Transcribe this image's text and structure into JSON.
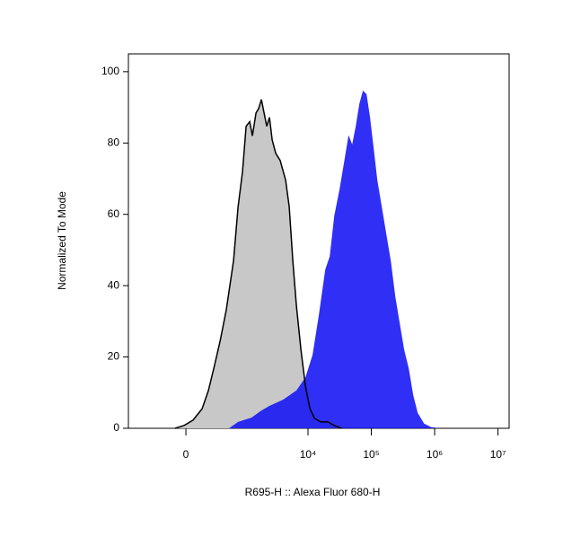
{
  "chart_data": {
    "type": "area",
    "x_label": "R695-H :: Alexa Fluor 680-H",
    "y_label": "Normalized To Mode",
    "xscale": "biex",
    "xlim": [
      -940,
      15000000
    ],
    "xticks": [
      0,
      {
        "value": 10000,
        "label": "10⁴"
      },
      {
        "value": 100000,
        "label": "10⁵"
      },
      {
        "value": 1000000,
        "label": "10⁶"
      },
      {
        "value": 10000000,
        "label": "10⁷"
      }
    ],
    "ylim": [
      0,
      105
    ],
    "yticks": [
      0,
      20,
      40,
      60,
      80,
      100
    ],
    "series": [
      {
        "color": "#c8c8c8",
        "line_color": "#000000",
        "x": [
          -95,
          -15,
          62,
          147,
          215,
          283,
          375,
          486,
          647,
          767,
          911,
          1040,
          1190,
          1315,
          1500,
          1657,
          1829,
          2020,
          2228,
          2459,
          2714,
          3092,
          3634,
          4437,
          5050,
          5758,
          6561,
          7741,
          9110,
          10738,
          12626,
          15883,
          20603,
          25913,
          33630
        ],
        "values": [
          0,
          0.8,
          2.3,
          5.5,
          10.6,
          16.8,
          24.4,
          33.2,
          47,
          62,
          72,
          84.7,
          86,
          82,
          88.4,
          89.7,
          92.2,
          88.4,
          84.7,
          87.2,
          80.9,
          77.1,
          75.1,
          69.6,
          62.1,
          47,
          34.4,
          21.9,
          11.8,
          5.5,
          2.8,
          1.8,
          1.8,
          0.8,
          0
        ]
      },
      {
        "color": "#1212f5",
        "x": [
          543,
          767,
          1272,
          1770,
          2459,
          4012,
          6561,
          9110,
          11824,
          14892,
          18691,
          22019,
          25913,
          31506,
          37146,
          43707,
          49796,
          56758,
          64664,
          73632,
          84016,
          95580,
          109032,
          124372,
          146320,
          172516,
          202960,
          239068,
          281548,
          331344,
          390344,
          459492,
          540912,
          680152,
          882876,
          1220120
        ],
        "values": [
          0,
          1.8,
          3.0,
          4.8,
          6.3,
          8.0,
          10.6,
          14.3,
          20.6,
          31.9,
          44.5,
          48.2,
          59.5,
          67.1,
          74.6,
          82.2,
          79.6,
          84.7,
          91,
          94.7,
          93.7,
          87.2,
          78.4,
          69.6,
          62.1,
          54.5,
          47,
          37,
          29.4,
          21.9,
          16.8,
          9.3,
          4.3,
          1.3,
          0.3,
          0
        ]
      }
    ]
  }
}
